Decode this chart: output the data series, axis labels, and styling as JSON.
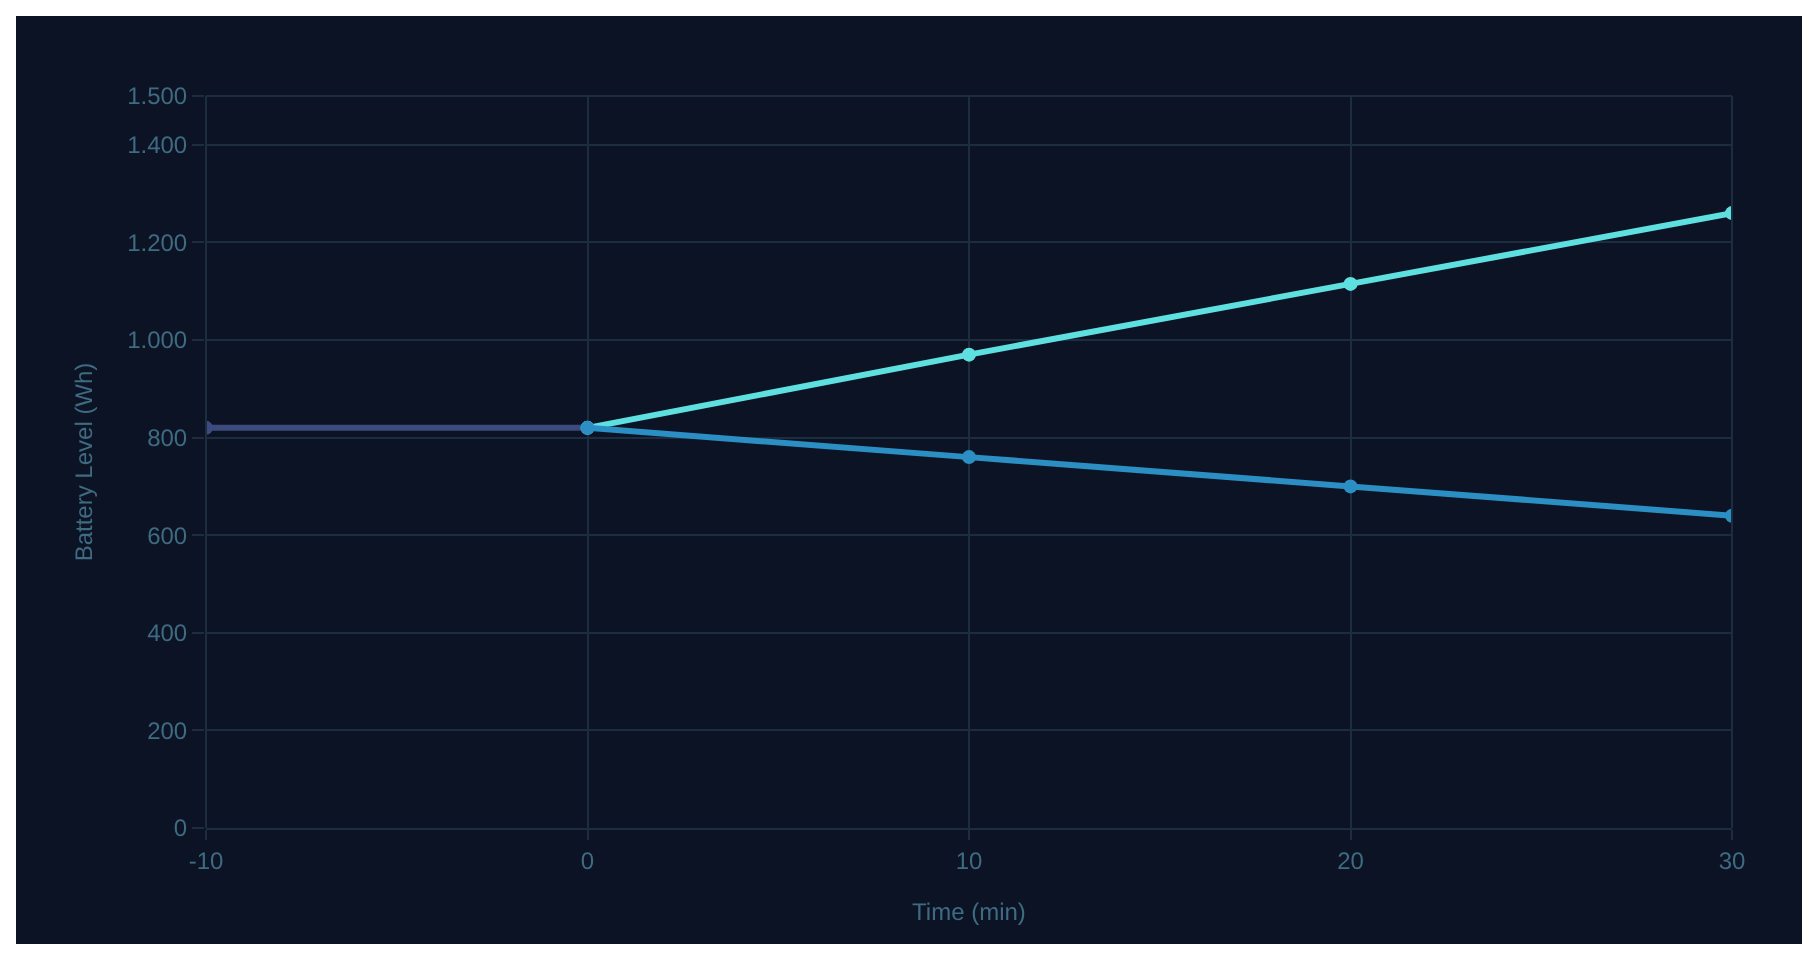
{
  "chart_data": {
    "type": "line",
    "xlabel": "Time (min)",
    "ylabel": "Battery Level (Wh)",
    "xlim": [
      -10,
      30
    ],
    "xticks": [
      -10,
      0,
      10,
      20,
      30
    ],
    "ylim": [
      0,
      1500
    ],
    "yticks": [
      {
        "value": 0,
        "label": "0"
      },
      {
        "value": 200,
        "label": "200"
      },
      {
        "value": 400,
        "label": "400"
      },
      {
        "value": 600,
        "label": "600"
      },
      {
        "value": 800,
        "label": "800"
      },
      {
        "value": 1000,
        "label": "1.000"
      },
      {
        "value": 1200,
        "label": "1.200"
      },
      {
        "value": 1400,
        "label": "1.400"
      },
      {
        "value": 1500,
        "label": "1.500"
      }
    ],
    "grid": true,
    "marker": "circle",
    "line_style": "solid",
    "series": [
      {
        "color": "#3d4a7e",
        "x": [
          -10,
          0
        ],
        "values": [
          820,
          820
        ]
      },
      {
        "color": "#5fe0e0",
        "x": [
          0,
          10,
          20,
          30
        ],
        "values": [
          820,
          970,
          1115,
          1260
        ]
      },
      {
        "color": "#2b8fc4",
        "x": [
          0,
          10,
          20,
          30
        ],
        "values": [
          820,
          760,
          700,
          640
        ]
      }
    ]
  }
}
